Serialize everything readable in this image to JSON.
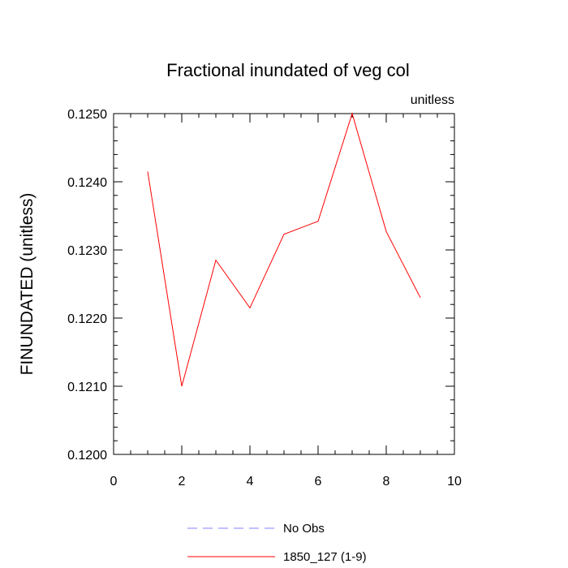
{
  "chart_data": {
    "type": "line",
    "title": "Fractional inundated of veg col",
    "units_label": "unitless",
    "ylabel": "FINUNDATED  (unitless)",
    "xlabel": "",
    "xlim": [
      0,
      10
    ],
    "ylim": [
      0.12,
      0.125
    ],
    "x_ticks": [
      "0",
      "2",
      "4",
      "6",
      "8",
      "10"
    ],
    "y_ticks": [
      "0.1200",
      "0.1210",
      "0.1220",
      "0.1230",
      "0.1240",
      "0.1250"
    ],
    "grid": false,
    "legend_position": "bottom",
    "series": [
      {
        "name": "1850_127 (1-9)",
        "color": "#ff0000",
        "line_style": "solid",
        "x": [
          1,
          2,
          3,
          4,
          5,
          6,
          7,
          8,
          9
        ],
        "y": [
          0.12415,
          0.121,
          0.12285,
          0.12215,
          0.12323,
          0.12342,
          0.125,
          0.12327,
          0.1223
        ]
      }
    ],
    "legend": [
      {
        "label": "No Obs",
        "color": "#8080ff",
        "line_style": "dashed"
      },
      {
        "label": "1850_127 (1-9)",
        "color": "#ff0000",
        "line_style": "solid"
      }
    ]
  }
}
